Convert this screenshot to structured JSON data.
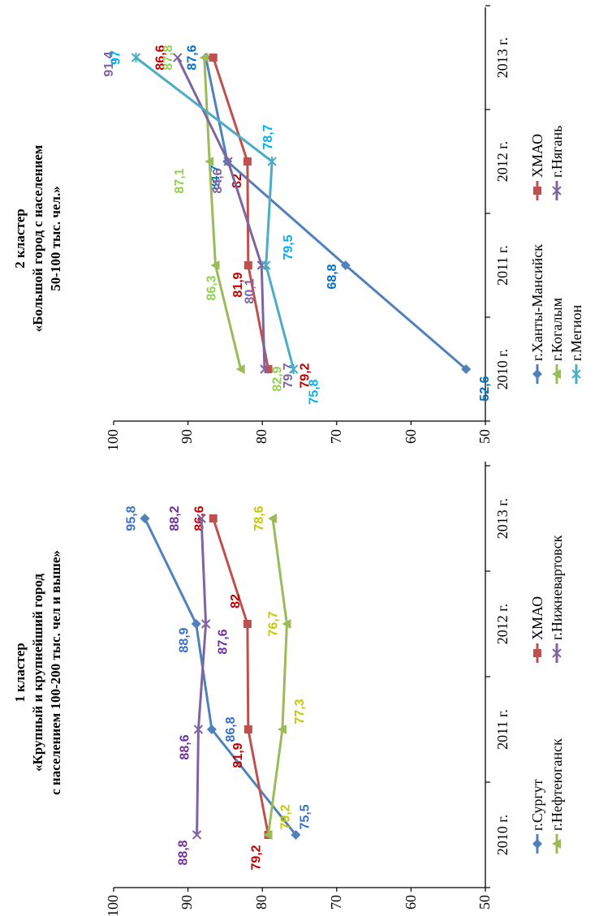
{
  "chart_data": [
    {
      "type": "line",
      "title": "1 кластер",
      "subtitle_lines": [
        "«Крупный и крупнейший город",
        "с населением 100-200 тыс. чел и выше»"
      ],
      "categories": [
        "2010 г.",
        "2011 г.",
        "2012 г.",
        "2013 г."
      ],
      "ylim": [
        50,
        100
      ],
      "yticks": [
        "50",
        "60",
        "70",
        "80",
        "90",
        "100"
      ],
      "grid": false,
      "series": [
        {
          "name": "г.Сургут",
          "values": [
            75.5,
            86.8,
            88.9,
            95.8
          ],
          "labels": [
            "75,5",
            "86,8",
            "88,9",
            "95,8"
          ],
          "color": "#4F81BD",
          "label_color": "#3A6FC4",
          "marker": "diamond"
        },
        {
          "name": "ХМАО",
          "values": [
            79.2,
            81.9,
            82.0,
            86.6
          ],
          "labels": [
            "79,2",
            "81,9",
            "82",
            "86,6"
          ],
          "color": "#C0504D",
          "label_color": "#C00000",
          "marker": "square"
        },
        {
          "name": "г.Нефтеюганск",
          "values": [
            79.2,
            77.3,
            76.7,
            78.6
          ],
          "labels": [
            "79,2",
            "77,3",
            "76,7",
            "78,6"
          ],
          "color": "#9BBB59",
          "label_color": "#C8C800",
          "marker": "triangle"
        },
        {
          "name": "г.Нижневартовск",
          "values": [
            88.8,
            88.6,
            87.6,
            88.2
          ],
          "labels": [
            "88,8",
            "88,6",
            "87,6",
            "88,2"
          ],
          "color": "#8064A2",
          "label_color": "#7030A0",
          "marker": "x"
        }
      ]
    },
    {
      "type": "line",
      "title": "2 кластер",
      "subtitle_lines": [
        "«Большой город с населением",
        "50-100 тыс. чел.»"
      ],
      "categories": [
        "2010 г.",
        "2011 г.",
        "2012 г.",
        "2013 г."
      ],
      "ylim": [
        50,
        100
      ],
      "yticks": [
        "50",
        "60",
        "70",
        "80",
        "90",
        "100"
      ],
      "grid": false,
      "series": [
        {
          "name": "г.Ханты-Мансийск",
          "values": [
            52.6,
            68.8,
            84.7,
            87.6
          ],
          "labels": [
            "52,6",
            "68,8",
            "84,7",
            "87,6"
          ],
          "color": "#4F81BD",
          "label_color": "#0070C0",
          "marker": "diamond"
        },
        {
          "name": "ХМАО",
          "values": [
            79.2,
            81.9,
            82.0,
            86.6
          ],
          "labels": [
            "79,2",
            "81,9",
            "82",
            "86,6"
          ],
          "color": "#C0504D",
          "label_color": "#C00000",
          "marker": "square"
        },
        {
          "name": "г.Когалым",
          "values": [
            82.9,
            86.3,
            87.1,
            87.8
          ],
          "labels": [
            "82,9",
            "86,3",
            "87,1",
            "87,8"
          ],
          "color": "#9BBB59",
          "label_color": "#92D050",
          "marker": "triangle"
        },
        {
          "name": "г.Нягань",
          "values": [
            79.7,
            80.1,
            84.6,
            91.4
          ],
          "labels": [
            "79,7",
            "80,1",
            "84,6",
            "91,4"
          ],
          "color": "#8064A2",
          "label_color": "#8064A2",
          "marker": "x"
        },
        {
          "name": "г.Мегион",
          "values": [
            75.8,
            79.5,
            78.7,
            97.0
          ],
          "labels": [
            "75,8",
            "79,5",
            "78,7",
            "97"
          ],
          "color": "#4BACC6",
          "label_color": "#00B0F0",
          "marker": "star"
        }
      ]
    }
  ]
}
